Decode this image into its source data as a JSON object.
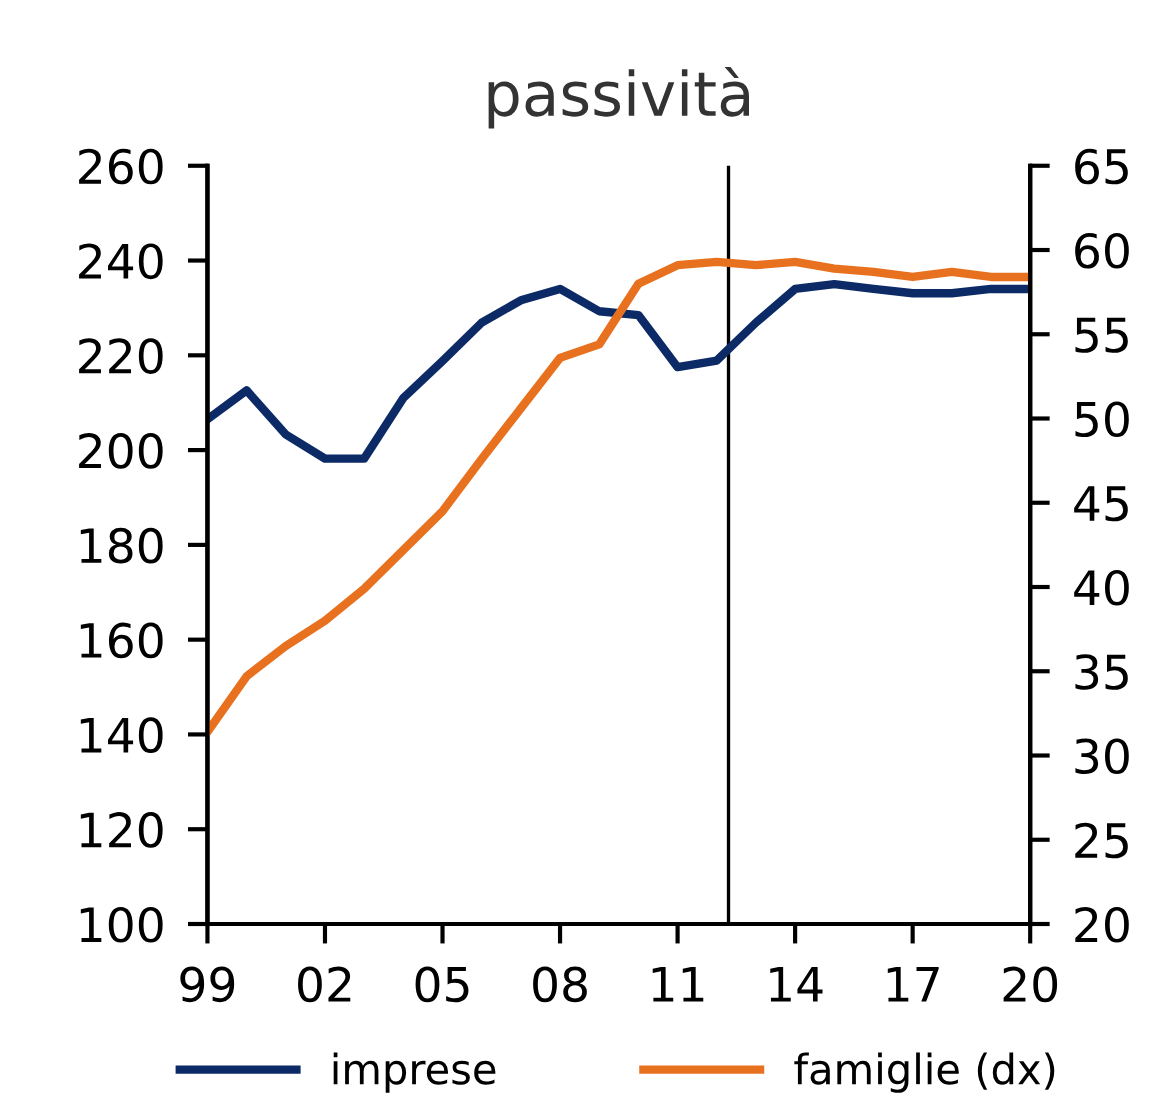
{
  "chart_data": {
    "type": "line",
    "title": "passività",
    "x": [
      1999,
      2000,
      2001,
      2002,
      2003,
      2004,
      2005,
      2006,
      2007,
      2008,
      2009,
      2010,
      2011,
      2012,
      2013,
      2014,
      2015,
      2016,
      2017,
      2018,
      2019,
      2020
    ],
    "series": [
      {
        "name": "imprese",
        "color": "#0c2a66",
        "values": [
          206.5,
          212.6,
          203.3,
          198.2,
          198.2,
          211.0,
          218.8,
          226.9,
          231.6,
          234.0,
          229.3,
          228.5,
          217.5,
          218.9,
          226.9,
          234.0,
          235.0,
          234.0,
          233.1,
          233.1,
          234.0,
          234.0
        ]
      },
      {
        "name": "famiglie (dx)",
        "color": "#e8711f",
        "axis": "y2",
        "values": [
          31.4,
          34.7,
          36.5,
          38.0,
          39.9,
          42.2,
          44.5,
          47.6,
          50.6,
          53.6,
          54.4,
          58.0,
          59.1,
          59.3,
          59.1,
          59.3,
          58.9,
          58.7,
          58.4,
          58.7,
          58.4,
          58.4
        ]
      }
    ],
    "xlim": [
      1999,
      2020
    ],
    "xticks": [
      {
        "value": 1999,
        "label": "99"
      },
      {
        "value": 2002,
        "label": "02"
      },
      {
        "value": 2005,
        "label": "05"
      },
      {
        "value": 2008,
        "label": "08"
      },
      {
        "value": 2011,
        "label": "11"
      },
      {
        "value": 2014,
        "label": "14"
      },
      {
        "value": 2017,
        "label": "17"
      },
      {
        "value": 2020,
        "label": "20"
      }
    ],
    "ylim": [
      100,
      260
    ],
    "yticks": [
      100,
      120,
      140,
      160,
      180,
      200,
      220,
      240,
      260
    ],
    "y2lim": [
      20,
      65
    ],
    "y2ticks": [
      20,
      25,
      30,
      35,
      40,
      45,
      50,
      55,
      60,
      65
    ],
    "ref_lines": [
      {
        "axis": "x",
        "value": 2012.3,
        "color": "#000000",
        "line_style": "solid"
      }
    ],
    "grid": false,
    "legend": "bottom",
    "marker": "none",
    "line_style": "solid"
  }
}
